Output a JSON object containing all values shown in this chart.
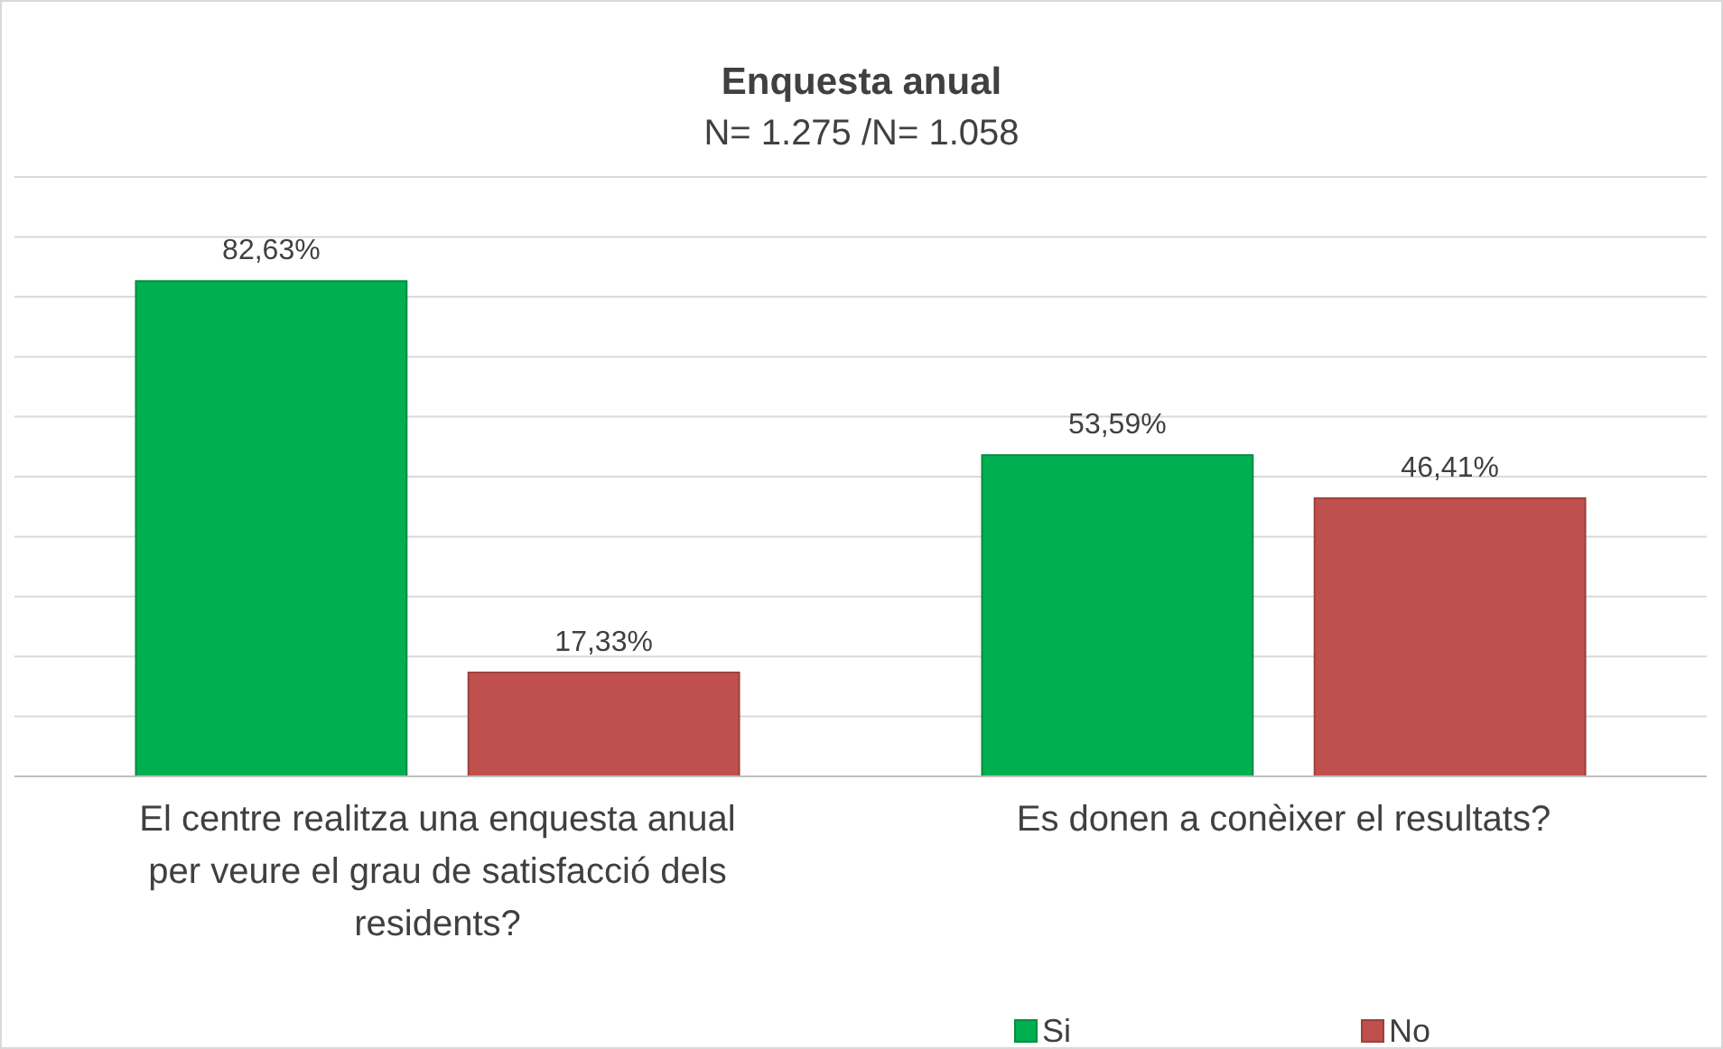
{
  "chart_data": {
    "type": "bar",
    "title": "Enquesta anual",
    "subtitle": "N= 1.275 /N= 1.058",
    "categories": [
      "El centre realitza una enquesta anual per veure el grau de satisfacció dels residents?",
      "Es donen a conèixer el resultats?"
    ],
    "series": [
      {
        "name": "Si",
        "color": "#00b050",
        "values": [
          82.63,
          53.59
        ],
        "value_labels": [
          "82,63%",
          "53,59%"
        ]
      },
      {
        "name": "No",
        "color": "#c0504d",
        "values": [
          17.33,
          46.41
        ],
        "value_labels": [
          "17,33%",
          "46,41%"
        ]
      }
    ],
    "ylim": [
      0,
      100
    ],
    "yticks": [
      {
        "value": 0,
        "label": null
      },
      {
        "value": 10,
        "label": null
      },
      {
        "value": 20,
        "label": null
      },
      {
        "value": 30,
        "label": null
      },
      {
        "value": 40,
        "label": null
      },
      {
        "value": 50,
        "label": null
      },
      {
        "value": 60,
        "label": null
      },
      {
        "value": 70,
        "label": null
      },
      {
        "value": 80,
        "label": null
      },
      {
        "value": 90,
        "label": null
      },
      {
        "value": 100,
        "label": null
      }
    ],
    "grid": "y",
    "legend": "bottom right",
    "tick_labels": "x"
  }
}
